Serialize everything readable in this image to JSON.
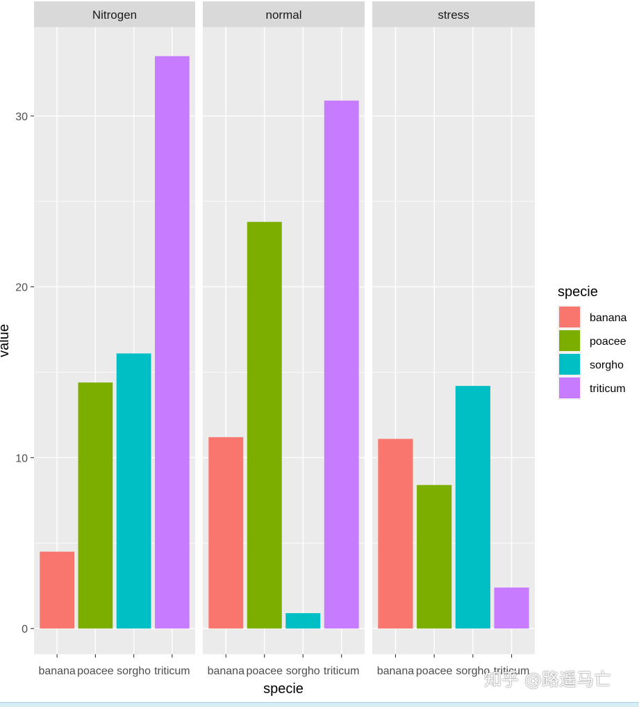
{
  "chart_data": {
    "type": "bar",
    "facets": [
      "Nitrogen",
      "normal",
      "stress"
    ],
    "categories": [
      "banana",
      "poacee",
      "sorgho",
      "triticum"
    ],
    "values": {
      "Nitrogen": [
        4.5,
        14.4,
        16.1,
        33.5
      ],
      "normal": [
        11.2,
        23.8,
        0.9,
        30.9
      ],
      "stress": [
        11.1,
        8.4,
        14.2,
        2.4
      ]
    },
    "xlabel": "specie",
    "ylabel": "value",
    "ylim": [
      -1.5,
      35.2
    ],
    "yticks": [
      0,
      10,
      20,
      30
    ],
    "grid": true,
    "legend": {
      "title": "specie",
      "position": "right",
      "items": [
        "banana",
        "poacee",
        "sorgho",
        "triticum"
      ]
    },
    "colors": {
      "banana": "#F8766D",
      "poacee": "#7CAE00",
      "sorgho": "#00BFC4",
      "triticum": "#C77CFF"
    }
  },
  "watermark": "知乎 @路遥马亡"
}
